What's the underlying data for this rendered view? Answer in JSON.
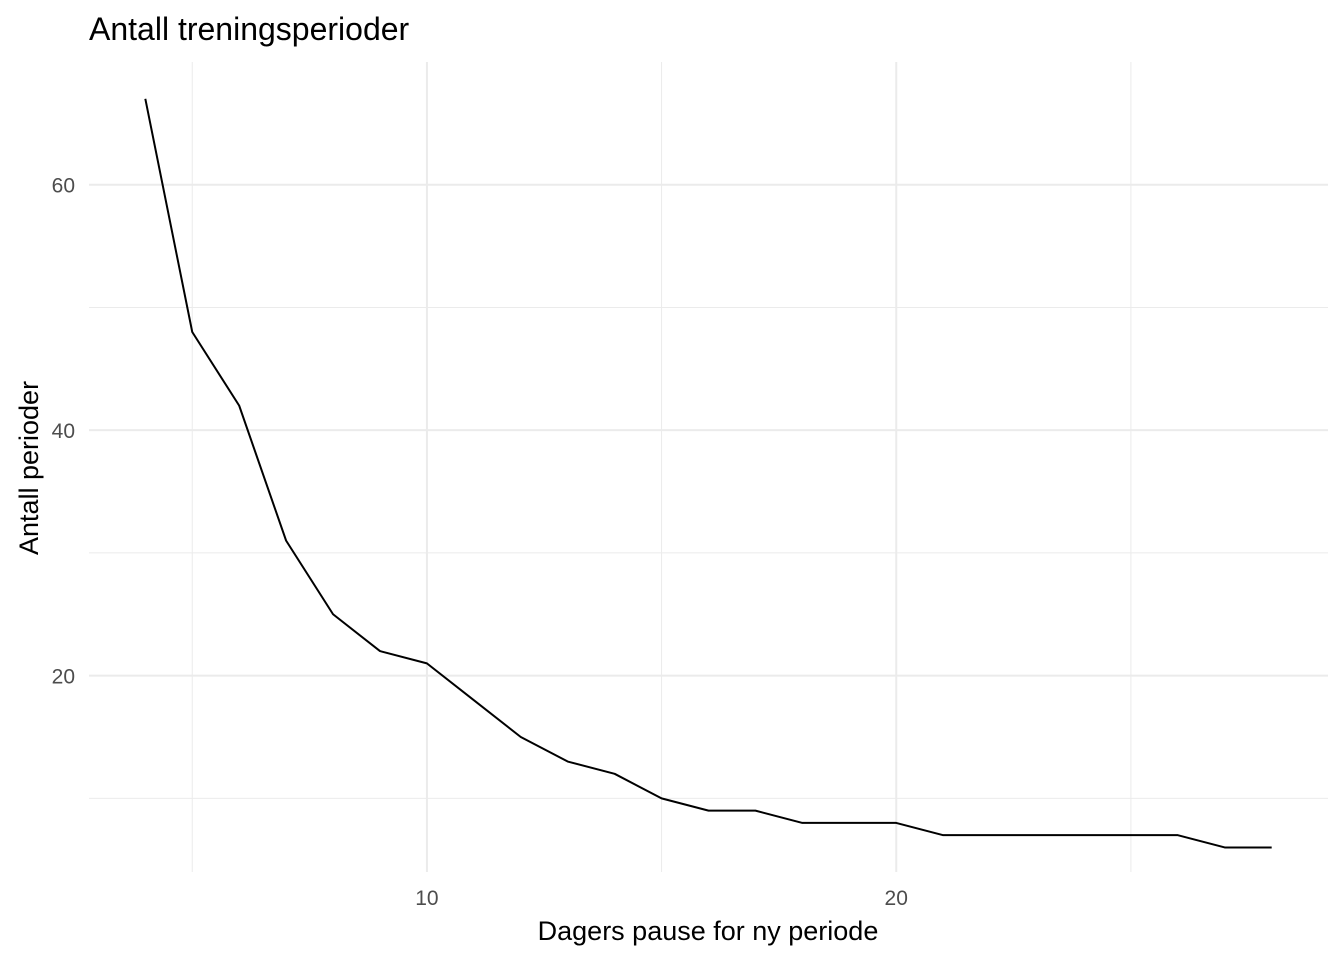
{
  "chart_data": {
    "type": "line",
    "title": "Antall treningsperioder",
    "xlabel": "Dagers pause for ny periode",
    "ylabel": "Antall perioder",
    "xlim": [
      2.8,
      29.2
    ],
    "ylim": [
      4,
      70
    ],
    "x_major_ticks": [
      10,
      20
    ],
    "x_minor_ticks": [
      5,
      15,
      25
    ],
    "y_major_ticks": [
      20,
      40,
      60
    ],
    "y_minor_ticks": [
      10,
      30,
      50
    ],
    "x_tick_labels": [
      "10",
      "20"
    ],
    "y_tick_labels": [
      "20",
      "40",
      "60"
    ],
    "grid": true,
    "line_color": "#000000",
    "grid_color": "#ebebeb",
    "series": [
      {
        "x": [
          4,
          5,
          6,
          7,
          8,
          9,
          10,
          11,
          12,
          13,
          14,
          15,
          16,
          17,
          18,
          19,
          20,
          21,
          22,
          23,
          24,
          25,
          26,
          27,
          28
        ],
        "values": [
          67,
          48,
          42,
          31,
          25,
          22,
          21,
          18,
          15,
          13,
          12,
          10,
          9,
          9,
          8,
          8,
          8,
          7,
          7,
          7,
          7,
          7,
          7,
          6,
          6
        ]
      }
    ]
  }
}
